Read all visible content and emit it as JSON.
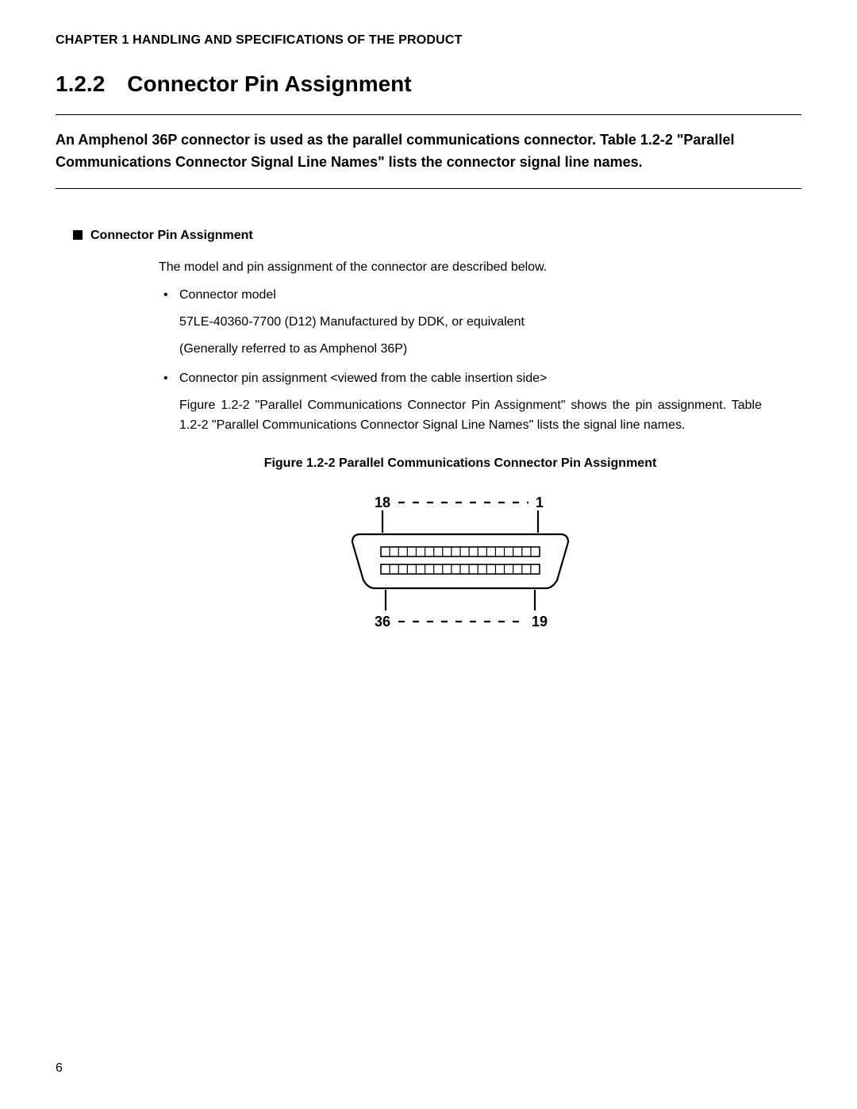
{
  "header": {
    "chapter_line": "CHAPTER 1  HANDLING AND SPECIFICATIONS OF THE PRODUCT"
  },
  "section": {
    "number": "1.2.2",
    "title": "Connector Pin Assignment"
  },
  "intro": {
    "text": "An Amphenol 36P connector is used as the parallel communications connector. Table 1.2-2 \"Parallel Communications Connector Signal Line Names\" lists the connector signal line names."
  },
  "subsection": {
    "heading": "Connector Pin Assignment",
    "lead": "The model and pin assignment of the connector are described below.",
    "items": [
      {
        "label": "Connector model",
        "lines": [
          "57LE-40360-7700 (D12) Manufactured by DDK, or equivalent",
          "(Generally referred to as Amphenol 36P)"
        ]
      },
      {
        "label": "Connector pin assignment <viewed from the cable insertion side>",
        "lines": [
          "Figure 1.2-2 \"Parallel Communications Connector Pin Assignment\" shows the pin assignment.  Table 1.2-2 \"Parallel Communications Connector Signal Line Names\" lists the signal line names."
        ]
      }
    ]
  },
  "figure": {
    "caption": "Figure 1.2-2  Parallel Communications Connector Pin Assignment",
    "pins": {
      "top_left": "18",
      "top_right": "1",
      "bottom_left": "36",
      "bottom_right": "19"
    },
    "style": {
      "stroke": "#000000",
      "stroke_width": 2.2,
      "dash": "8 10",
      "lead_dash": "9 9",
      "pin_count_per_row": 18,
      "font_size": 18,
      "font_weight": "bold"
    }
  },
  "page_number": "6"
}
